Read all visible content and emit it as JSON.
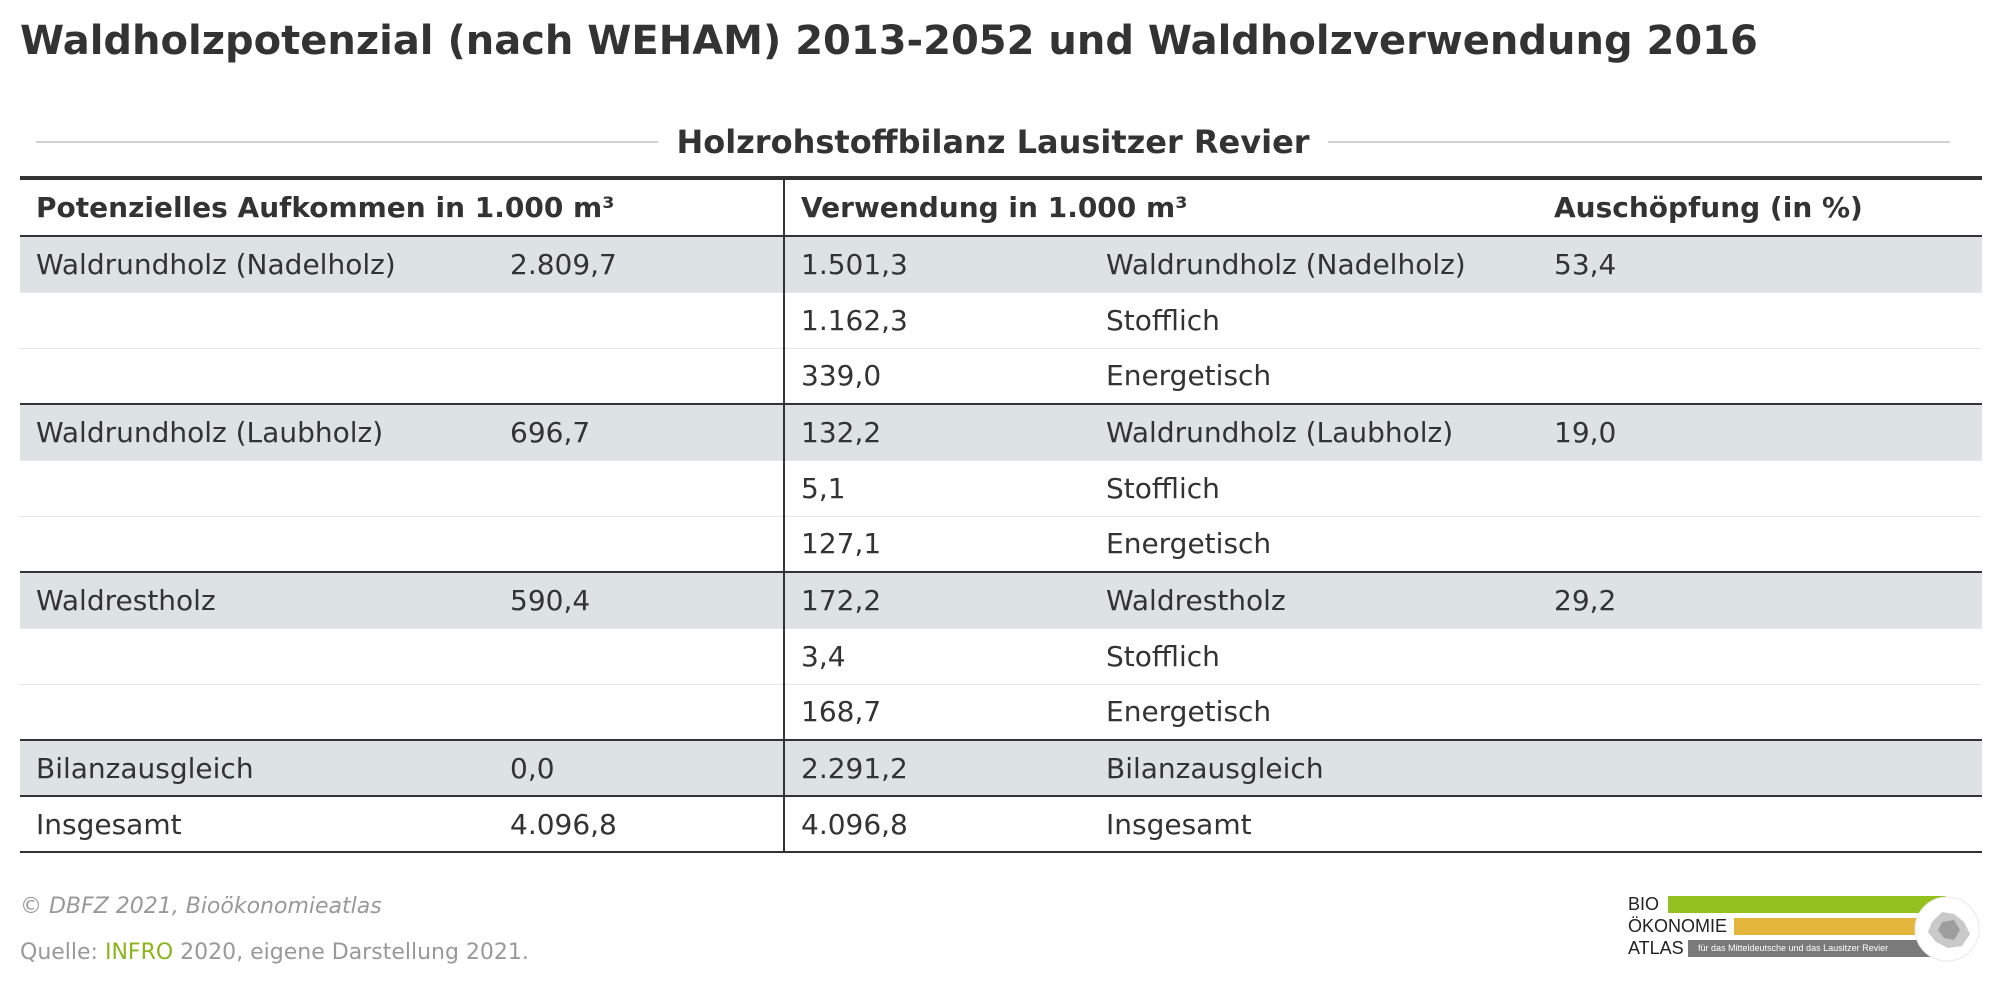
{
  "title": "Waldholzpotenzial (nach WEHAM) 2013-2052 und Waldholzverwendung 2016",
  "subtitle": "Holzrohstoffbilanz Lausitzer Revier",
  "columns": {
    "aufkommen": "Potenzielles Aufkommen in 1.000 m³",
    "verwendung": "Verwendung in 1.000 m³",
    "auschoepfung": "Auschöpfung (in %)"
  },
  "rows": [
    {
      "label": "Waldrundholz (Nadelholz)",
      "potential": "2.809,7",
      "use_value": "1.501,3",
      "use_label": "Waldrundholz (Nadelholz)",
      "pct": "53,4"
    },
    {
      "label": "",
      "potential": "",
      "use_value": "1.162,3",
      "use_label": "Stofflich",
      "pct": ""
    },
    {
      "label": "",
      "potential": "",
      "use_value": "339,0",
      "use_label": "Energetisch",
      "pct": ""
    },
    {
      "label": "Waldrundholz (Laubholz)",
      "potential": "696,7",
      "use_value": "132,2",
      "use_label": "Waldrundholz (Laubholz)",
      "pct": "19,0"
    },
    {
      "label": "",
      "potential": "",
      "use_value": "5,1",
      "use_label": "Stofflich",
      "pct": ""
    },
    {
      "label": "",
      "potential": "",
      "use_value": "127,1",
      "use_label": "Energetisch",
      "pct": ""
    },
    {
      "label": "Waldrestholz",
      "potential": "590,4",
      "use_value": "172,2",
      "use_label": "Waldrestholz",
      "pct": "29,2"
    },
    {
      "label": "",
      "potential": "",
      "use_value": "3,4",
      "use_label": "Stofflich",
      "pct": ""
    },
    {
      "label": "",
      "potential": "",
      "use_value": "168,7",
      "use_label": "Energetisch",
      "pct": ""
    },
    {
      "label": "Bilanzausgleich",
      "potential": "0,0",
      "use_value": "2.291,2",
      "use_label": "Bilanzausgleich",
      "pct": ""
    },
    {
      "label": "Insgesamt",
      "potential": "4.096,8",
      "use_value": "4.096,8",
      "use_label": "Insgesamt",
      "pct": ""
    }
  ],
  "footer": {
    "copyright": "© DBFZ 2021, Bioökonomieatlas",
    "source_prefix": "Quelle: ",
    "source_link": "INFRO",
    "source_suffix": " 2020, eigene Darstellung 2021."
  },
  "logo": {
    "line1": "BIO",
    "line2": "ÖKONOMIE",
    "line3": "ATLAS",
    "tagline": "für das Mitteldeutsche und das Lausitzer Revier",
    "colors": {
      "green": "#95c11f",
      "yellow": "#e3b53a",
      "gray": "#7a7a7a"
    }
  },
  "colors": {
    "row_shade": "#dde3e4",
    "text": "#333333",
    "muted": "#999999",
    "link": "#8ab61c"
  }
}
